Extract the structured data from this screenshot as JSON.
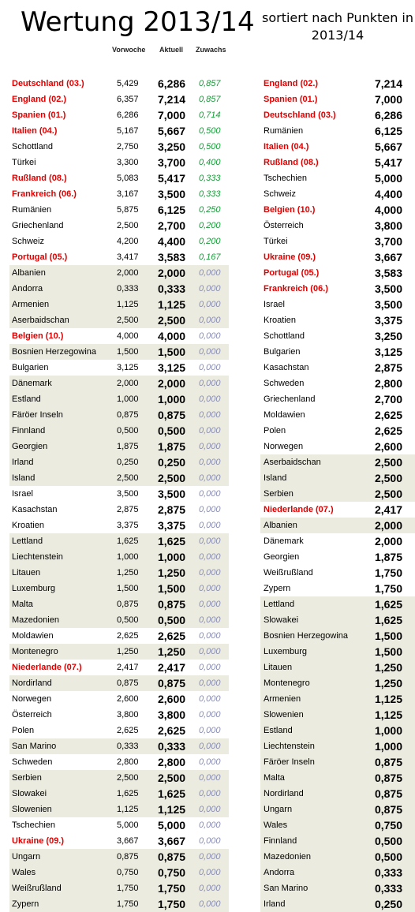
{
  "title": "Wertung 2013/14",
  "subtitle": "sortiert nach Punkten in 2013/14",
  "headers": {
    "prev": "Vorwoche",
    "now": "Aktuell",
    "gain": "Zuwachs"
  },
  "left_rows": [
    {
      "name": "Deutschland (03.)",
      "prev": "5,429",
      "now": "6,286",
      "gain": "0,857",
      "red": true,
      "shade": false
    },
    {
      "name": "England (02.)",
      "prev": "6,357",
      "now": "7,214",
      "gain": "0,857",
      "red": true,
      "shade": false
    },
    {
      "name": "Spanien (01.)",
      "prev": "6,286",
      "now": "7,000",
      "gain": "0,714",
      "red": true,
      "shade": false
    },
    {
      "name": "Italien (04.)",
      "prev": "5,167",
      "now": "5,667",
      "gain": "0,500",
      "red": true,
      "shade": false
    },
    {
      "name": "Schottland",
      "prev": "2,750",
      "now": "3,250",
      "gain": "0,500",
      "red": false,
      "shade": false
    },
    {
      "name": "Türkei",
      "prev": "3,300",
      "now": "3,700",
      "gain": "0,400",
      "red": false,
      "shade": false
    },
    {
      "name": "Rußland (08.)",
      "prev": "5,083",
      "now": "5,417",
      "gain": "0,333",
      "red": true,
      "shade": false
    },
    {
      "name": "Frankreich (06.)",
      "prev": "3,167",
      "now": "3,500",
      "gain": "0,333",
      "red": true,
      "shade": false
    },
    {
      "name": "Rumänien",
      "prev": "5,875",
      "now": "6,125",
      "gain": "0,250",
      "red": false,
      "shade": false
    },
    {
      "name": "Griechenland",
      "prev": "2,500",
      "now": "2,700",
      "gain": "0,200",
      "red": false,
      "shade": false
    },
    {
      "name": "Schweiz",
      "prev": "4,200",
      "now": "4,400",
      "gain": "0,200",
      "red": false,
      "shade": false
    },
    {
      "name": "Portugal (05.)",
      "prev": "3,417",
      "now": "3,583",
      "gain": "0,167",
      "red": true,
      "shade": false
    },
    {
      "name": "Albanien",
      "prev": "2,000",
      "now": "2,000",
      "gain": "0,000",
      "red": false,
      "shade": true
    },
    {
      "name": "Andorra",
      "prev": "0,333",
      "now": "0,333",
      "gain": "0,000",
      "red": false,
      "shade": true
    },
    {
      "name": "Armenien",
      "prev": "1,125",
      "now": "1,125",
      "gain": "0,000",
      "red": false,
      "shade": true
    },
    {
      "name": "Aserbaidschan",
      "prev": "2,500",
      "now": "2,500",
      "gain": "0,000",
      "red": false,
      "shade": true
    },
    {
      "name": "Belgien (10.)",
      "prev": "4,000",
      "now": "4,000",
      "gain": "0,000",
      "red": true,
      "shade": false
    },
    {
      "name": "Bosnien Herzegowina",
      "prev": "1,500",
      "now": "1,500",
      "gain": "0,000",
      "red": false,
      "shade": true
    },
    {
      "name": "Bulgarien",
      "prev": "3,125",
      "now": "3,125",
      "gain": "0,000",
      "red": false,
      "shade": false
    },
    {
      "name": "Dänemark",
      "prev": "2,000",
      "now": "2,000",
      "gain": "0,000",
      "red": false,
      "shade": true
    },
    {
      "name": "Estland",
      "prev": "1,000",
      "now": "1,000",
      "gain": "0,000",
      "red": false,
      "shade": true
    },
    {
      "name": "Färöer Inseln",
      "prev": "0,875",
      "now": "0,875",
      "gain": "0,000",
      "red": false,
      "shade": true
    },
    {
      "name": "Finnland",
      "prev": "0,500",
      "now": "0,500",
      "gain": "0,000",
      "red": false,
      "shade": true
    },
    {
      "name": "Georgien",
      "prev": "1,875",
      "now": "1,875",
      "gain": "0,000",
      "red": false,
      "shade": true
    },
    {
      "name": "Irland",
      "prev": "0,250",
      "now": "0,250",
      "gain": "0,000",
      "red": false,
      "shade": true
    },
    {
      "name": "Island",
      "prev": "2,500",
      "now": "2,500",
      "gain": "0,000",
      "red": false,
      "shade": true
    },
    {
      "name": "Israel",
      "prev": "3,500",
      "now": "3,500",
      "gain": "0,000",
      "red": false,
      "shade": false
    },
    {
      "name": "Kasachstan",
      "prev": "2,875",
      "now": "2,875",
      "gain": "0,000",
      "red": false,
      "shade": false
    },
    {
      "name": "Kroatien",
      "prev": "3,375",
      "now": "3,375",
      "gain": "0,000",
      "red": false,
      "shade": false
    },
    {
      "name": "Lettland",
      "prev": "1,625",
      "now": "1,625",
      "gain": "0,000",
      "red": false,
      "shade": true
    },
    {
      "name": "Liechtenstein",
      "prev": "1,000",
      "now": "1,000",
      "gain": "0,000",
      "red": false,
      "shade": true
    },
    {
      "name": "Litauen",
      "prev": "1,250",
      "now": "1,250",
      "gain": "0,000",
      "red": false,
      "shade": true
    },
    {
      "name": "Luxemburg",
      "prev": "1,500",
      "now": "1,500",
      "gain": "0,000",
      "red": false,
      "shade": true
    },
    {
      "name": "Malta",
      "prev": "0,875",
      "now": "0,875",
      "gain": "0,000",
      "red": false,
      "shade": true
    },
    {
      "name": "Mazedonien",
      "prev": "0,500",
      "now": "0,500",
      "gain": "0,000",
      "red": false,
      "shade": true
    },
    {
      "name": "Moldawien",
      "prev": "2,625",
      "now": "2,625",
      "gain": "0,000",
      "red": false,
      "shade": false
    },
    {
      "name": "Montenegro",
      "prev": "1,250",
      "now": "1,250",
      "gain": "0,000",
      "red": false,
      "shade": true
    },
    {
      "name": "Niederlande (07.)",
      "prev": "2,417",
      "now": "2,417",
      "gain": "0,000",
      "red": true,
      "shade": false
    },
    {
      "name": "Nordirland",
      "prev": "0,875",
      "now": "0,875",
      "gain": "0,000",
      "red": false,
      "shade": true
    },
    {
      "name": "Norwegen",
      "prev": "2,600",
      "now": "2,600",
      "gain": "0,000",
      "red": false,
      "shade": false
    },
    {
      "name": "Österreich",
      "prev": "3,800",
      "now": "3,800",
      "gain": "0,000",
      "red": false,
      "shade": false
    },
    {
      "name": "Polen",
      "prev": "2,625",
      "now": "2,625",
      "gain": "0,000",
      "red": false,
      "shade": false
    },
    {
      "name": "San Marino",
      "prev": "0,333",
      "now": "0,333",
      "gain": "0,000",
      "red": false,
      "shade": true
    },
    {
      "name": "Schweden",
      "prev": "2,800",
      "now": "2,800",
      "gain": "0,000",
      "red": false,
      "shade": false
    },
    {
      "name": "Serbien",
      "prev": "2,500",
      "now": "2,500",
      "gain": "0,000",
      "red": false,
      "shade": true
    },
    {
      "name": "Slowakei",
      "prev": "1,625",
      "now": "1,625",
      "gain": "0,000",
      "red": false,
      "shade": true
    },
    {
      "name": "Slowenien",
      "prev": "1,125",
      "now": "1,125",
      "gain": "0,000",
      "red": false,
      "shade": true
    },
    {
      "name": "Tschechien",
      "prev": "5,000",
      "now": "5,000",
      "gain": "0,000",
      "red": false,
      "shade": false
    },
    {
      "name": "Ukraine (09.)",
      "prev": "3,667",
      "now": "3,667",
      "gain": "0,000",
      "red": true,
      "shade": false
    },
    {
      "name": "Ungarn",
      "prev": "0,875",
      "now": "0,875",
      "gain": "0,000",
      "red": false,
      "shade": true
    },
    {
      "name": "Wales",
      "prev": "0,750",
      "now": "0,750",
      "gain": "0,000",
      "red": false,
      "shade": true
    },
    {
      "name": "Weißrußland",
      "prev": "1,750",
      "now": "1,750",
      "gain": "0,000",
      "red": false,
      "shade": true
    },
    {
      "name": "Zypern",
      "prev": "1,750",
      "now": "1,750",
      "gain": "0,000",
      "red": false,
      "shade": true
    }
  ],
  "right_rows": [
    {
      "name": "England (02.)",
      "value": "7,214",
      "red": true,
      "shade": false
    },
    {
      "name": "Spanien (01.)",
      "value": "7,000",
      "red": true,
      "shade": false
    },
    {
      "name": "Deutschland (03.)",
      "value": "6,286",
      "red": true,
      "shade": false
    },
    {
      "name": "Rumänien",
      "value": "6,125",
      "red": false,
      "shade": false
    },
    {
      "name": "Italien (04.)",
      "value": "5,667",
      "red": true,
      "shade": false
    },
    {
      "name": "Rußland (08.)",
      "value": "5,417",
      "red": true,
      "shade": false
    },
    {
      "name": "Tschechien",
      "value": "5,000",
      "red": false,
      "shade": false
    },
    {
      "name": "Schweiz",
      "value": "4,400",
      "red": false,
      "shade": false
    },
    {
      "name": "Belgien (10.)",
      "value": "4,000",
      "red": true,
      "shade": false
    },
    {
      "name": "Österreich",
      "value": "3,800",
      "red": false,
      "shade": false
    },
    {
      "name": "Türkei",
      "value": "3,700",
      "red": false,
      "shade": false
    },
    {
      "name": "Ukraine (09.)",
      "value": "3,667",
      "red": true,
      "shade": false
    },
    {
      "name": "Portugal (05.)",
      "value": "3,583",
      "red": true,
      "shade": false
    },
    {
      "name": "Frankreich (06.)",
      "value": "3,500",
      "red": true,
      "shade": false
    },
    {
      "name": "Israel",
      "value": "3,500",
      "red": false,
      "shade": false
    },
    {
      "name": "Kroatien",
      "value": "3,375",
      "red": false,
      "shade": false
    },
    {
      "name": "Schottland",
      "value": "3,250",
      "red": false,
      "shade": false
    },
    {
      "name": "Bulgarien",
      "value": "3,125",
      "red": false,
      "shade": false
    },
    {
      "name": "Kasachstan",
      "value": "2,875",
      "red": false,
      "shade": false
    },
    {
      "name": "Schweden",
      "value": "2,800",
      "red": false,
      "shade": false
    },
    {
      "name": "Griechenland",
      "value": "2,700",
      "red": false,
      "shade": false
    },
    {
      "name": "Moldawien",
      "value": "2,625",
      "red": false,
      "shade": false
    },
    {
      "name": "Polen",
      "value": "2,625",
      "red": false,
      "shade": false
    },
    {
      "name": "Norwegen",
      "value": "2,600",
      "red": false,
      "shade": false
    },
    {
      "name": "Aserbaidschan",
      "value": "2,500",
      "red": false,
      "shade": true
    },
    {
      "name": "Island",
      "value": "2,500",
      "red": false,
      "shade": true
    },
    {
      "name": "Serbien",
      "value": "2,500",
      "red": false,
      "shade": true
    },
    {
      "name": "Niederlande (07.)",
      "value": "2,417",
      "red": true,
      "shade": false
    },
    {
      "name": "Albanien",
      "value": "2,000",
      "red": false,
      "shade": true
    },
    {
      "name": "Dänemark",
      "value": "2,000",
      "red": false,
      "shade": false
    },
    {
      "name": "Georgien",
      "value": "1,875",
      "red": false,
      "shade": false
    },
    {
      "name": "Weißrußland",
      "value": "1,750",
      "red": false,
      "shade": false
    },
    {
      "name": "Zypern",
      "value": "1,750",
      "red": false,
      "shade": false
    },
    {
      "name": "Lettland",
      "value": "1,625",
      "red": false,
      "shade": true
    },
    {
      "name": "Slowakei",
      "value": "1,625",
      "red": false,
      "shade": true
    },
    {
      "name": "Bosnien Herzegowina",
      "value": "1,500",
      "red": false,
      "shade": true
    },
    {
      "name": "Luxemburg",
      "value": "1,500",
      "red": false,
      "shade": true
    },
    {
      "name": "Litauen",
      "value": "1,250",
      "red": false,
      "shade": true
    },
    {
      "name": "Montenegro",
      "value": "1,250",
      "red": false,
      "shade": true
    },
    {
      "name": "Armenien",
      "value": "1,125",
      "red": false,
      "shade": true
    },
    {
      "name": "Slowenien",
      "value": "1,125",
      "red": false,
      "shade": true
    },
    {
      "name": "Estland",
      "value": "1,000",
      "red": false,
      "shade": true
    },
    {
      "name": "Liechtenstein",
      "value": "1,000",
      "red": false,
      "shade": true
    },
    {
      "name": "Färöer Inseln",
      "value": "0,875",
      "red": false,
      "shade": true
    },
    {
      "name": "Malta",
      "value": "0,875",
      "red": false,
      "shade": true
    },
    {
      "name": "Nordirland",
      "value": "0,875",
      "red": false,
      "shade": true
    },
    {
      "name": "Ungarn",
      "value": "0,875",
      "red": false,
      "shade": true
    },
    {
      "name": "Wales",
      "value": "0,750",
      "red": false,
      "shade": true
    },
    {
      "name": "Finnland",
      "value": "0,500",
      "red": false,
      "shade": true
    },
    {
      "name": "Mazedonien",
      "value": "0,500",
      "red": false,
      "shade": true
    },
    {
      "name": "Andorra",
      "value": "0,333",
      "red": false,
      "shade": true
    },
    {
      "name": "San Marino",
      "value": "0,333",
      "red": false,
      "shade": true
    },
    {
      "name": "Irland",
      "value": "0,250",
      "red": false,
      "shade": true
    }
  ]
}
